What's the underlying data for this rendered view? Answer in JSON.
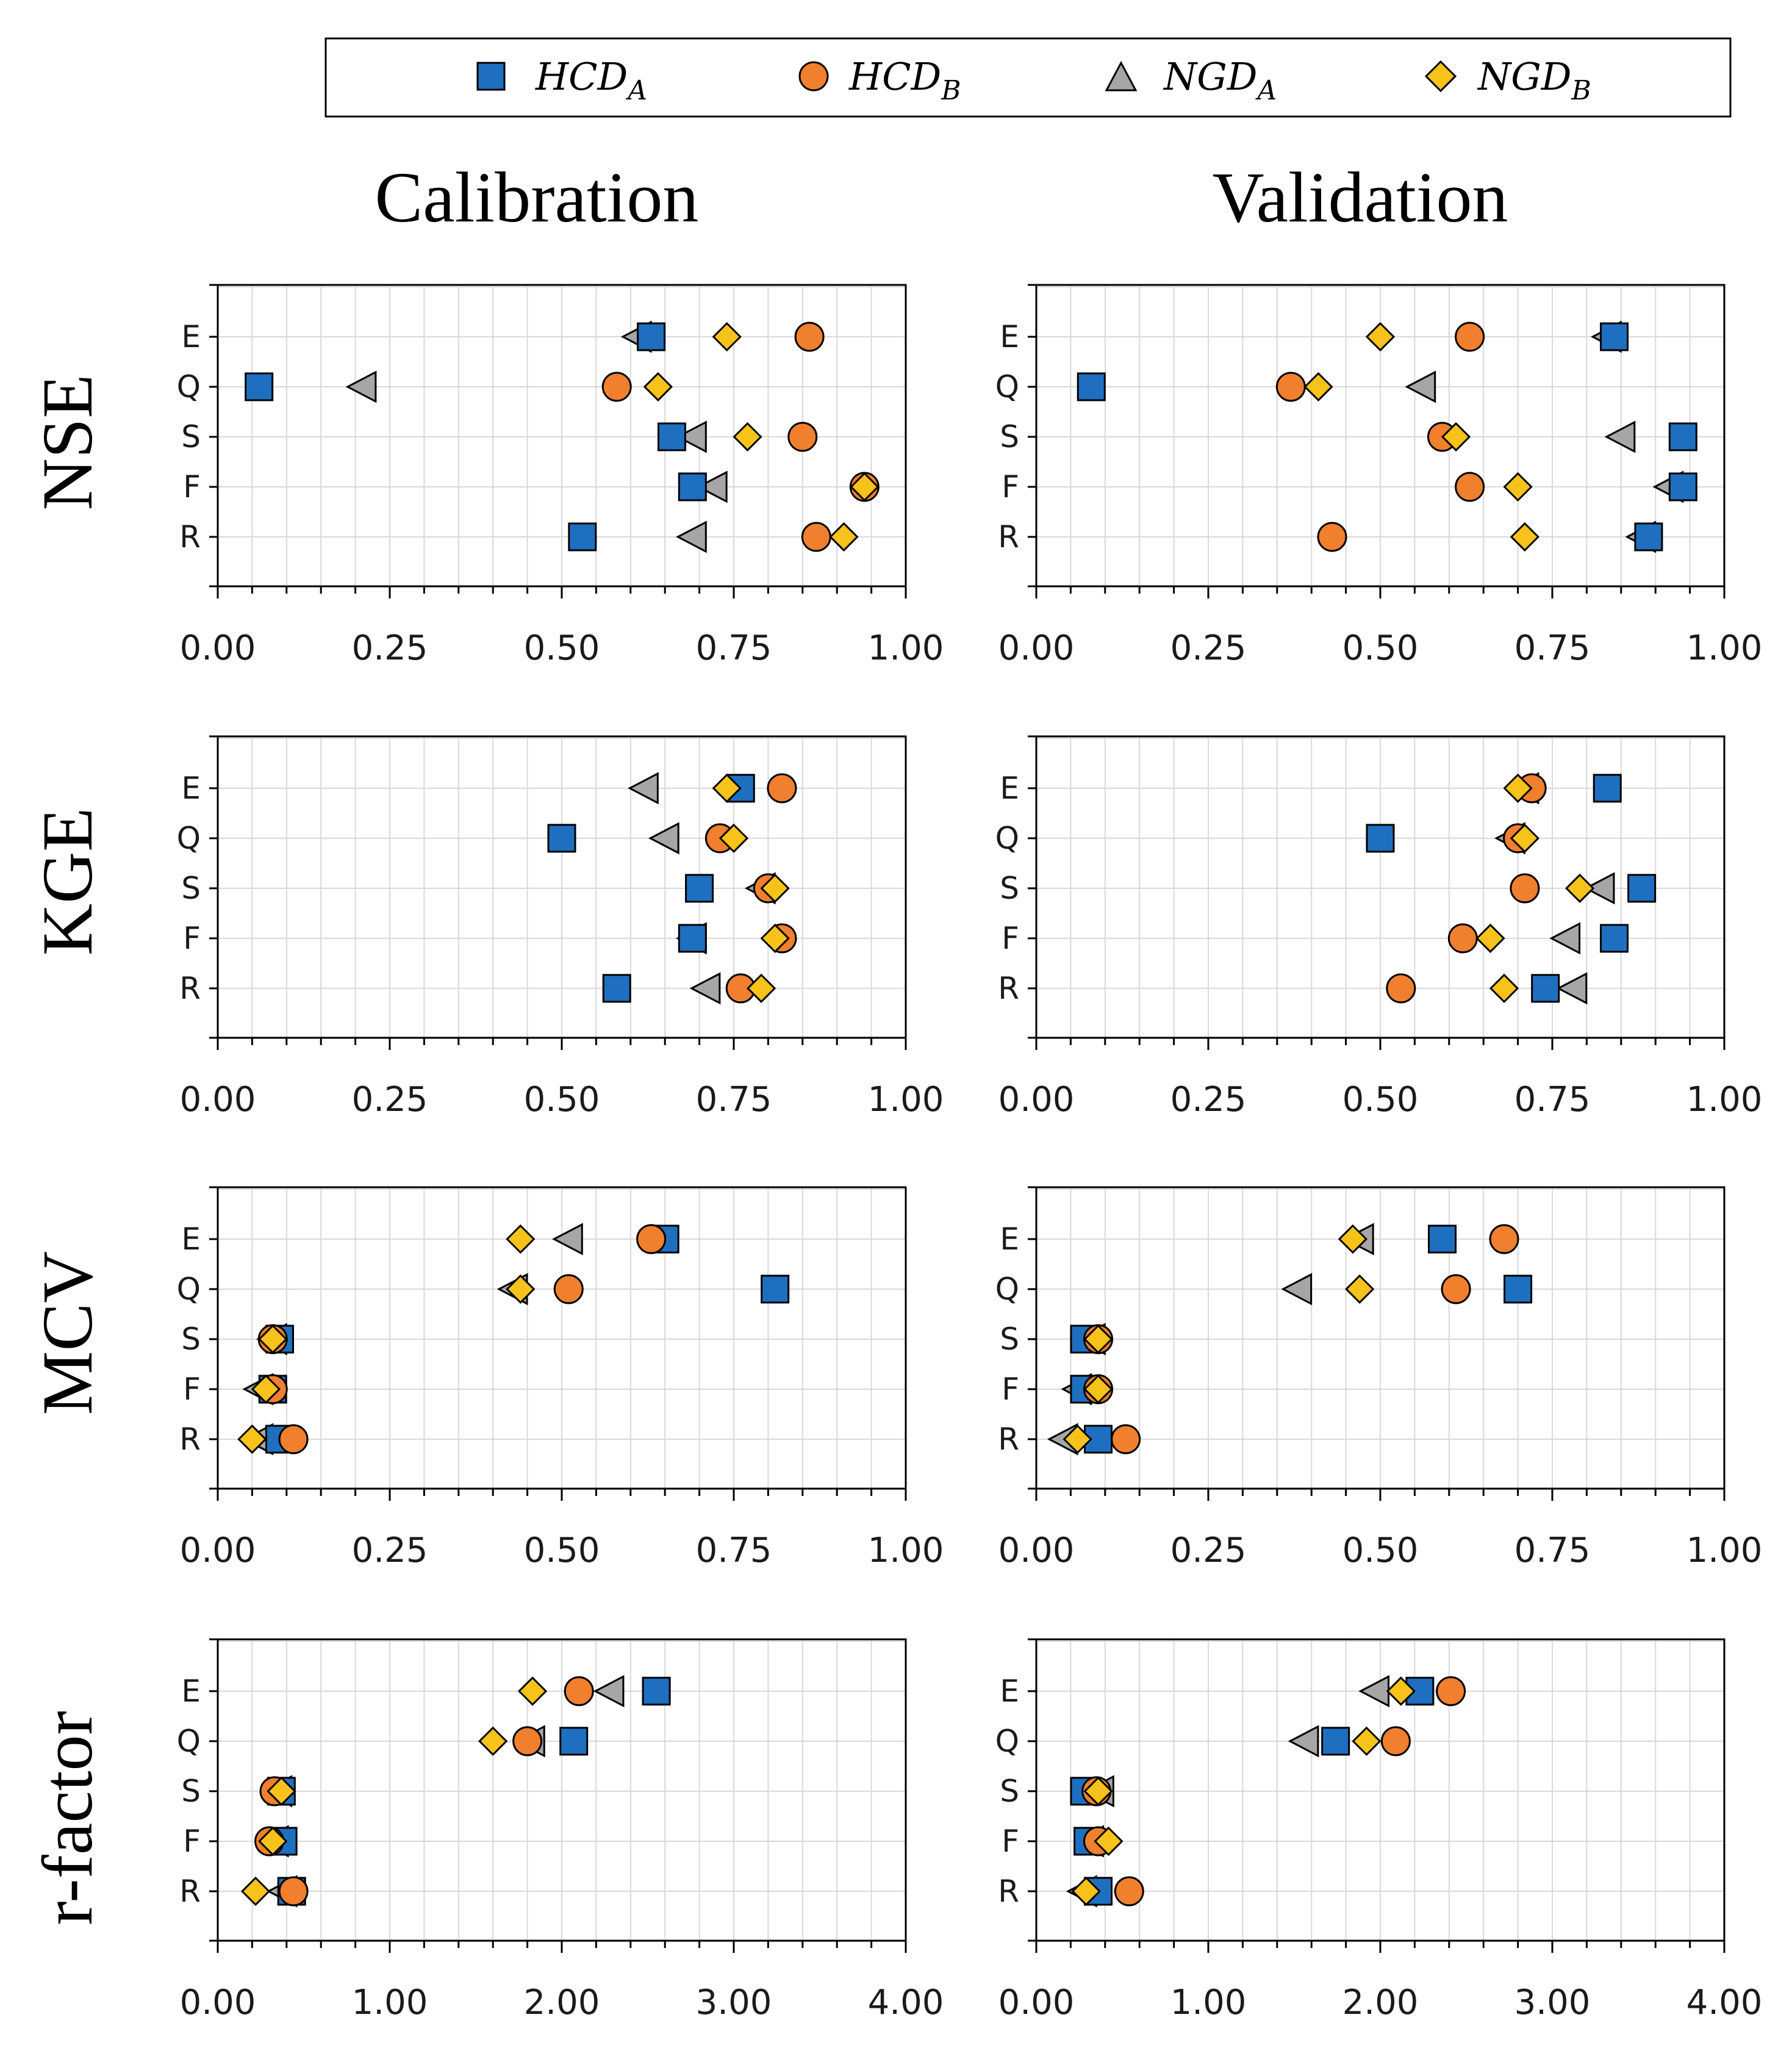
{
  "legend": {
    "entries": [
      {
        "key": "HCDA",
        "base": "HCD",
        "sub": "A",
        "marker": "square"
      },
      {
        "key": "HCDB",
        "base": "HCD",
        "sub": "B",
        "marker": "circle"
      },
      {
        "key": "NGDA",
        "base": "NGD",
        "sub": "A",
        "marker": "triangle"
      },
      {
        "key": "NGDB",
        "base": "NGD",
        "sub": "B",
        "marker": "diamond"
      }
    ]
  },
  "column_titles": [
    "Calibration",
    "Validation"
  ],
  "row_titles": [
    "NSE",
    "KGE",
    "MCV",
    "r-factor"
  ],
  "colors": {
    "HCDA": "#1f6fc0",
    "HCDB": "#f07f2e",
    "NGDA": "#a6a6a6",
    "NGDB": "#f7c21a",
    "grid": "#d9d9d9",
    "axis": "#000000"
  },
  "chart_data": {
    "type": "scatter",
    "categories": [
      "E",
      "Q",
      "S",
      "F",
      "R"
    ],
    "series_names": [
      "HCDA",
      "HCDB",
      "NGDA",
      "NGDB"
    ],
    "panels": [
      {
        "metric": "NSE",
        "phase": "Calibration",
        "xlim": [
          0,
          1
        ],
        "ticks": [
          "0.00",
          "0.25",
          "0.50",
          "0.75",
          "1.00"
        ],
        "tick_values": [
          0,
          0.25,
          0.5,
          0.75,
          1
        ],
        "series": {
          "HCDA": [
            0.63,
            0.06,
            0.66,
            0.69,
            0.53
          ],
          "HCDB": [
            0.86,
            0.58,
            0.85,
            0.94,
            0.87
          ],
          "NGDA": [
            0.61,
            0.21,
            0.69,
            0.72,
            0.69
          ],
          "NGDB": [
            0.74,
            0.64,
            0.77,
            0.94,
            0.91
          ]
        }
      },
      {
        "metric": "NSE",
        "phase": "Validation",
        "xlim": [
          0,
          1
        ],
        "ticks": [
          "0.00",
          "0.25",
          "0.50",
          "0.75",
          "1.00"
        ],
        "tick_values": [
          0,
          0.25,
          0.5,
          0.75,
          1
        ],
        "series": {
          "HCDA": [
            0.84,
            0.08,
            0.94,
            0.94,
            0.89
          ],
          "HCDB": [
            0.63,
            0.37,
            0.59,
            0.63,
            0.43
          ],
          "NGDA": [
            0.83,
            0.56,
            0.85,
            0.92,
            0.88
          ],
          "NGDB": [
            0.5,
            0.41,
            0.61,
            0.7,
            0.71
          ]
        }
      },
      {
        "metric": "KGE",
        "phase": "Calibration",
        "xlim": [
          0,
          1
        ],
        "ticks": [
          "0.00",
          "0.25",
          "0.50",
          "0.75",
          "1.00"
        ],
        "tick_values": [
          0,
          0.25,
          0.5,
          0.75,
          1
        ],
        "series": {
          "HCDA": [
            0.76,
            0.5,
            0.7,
            0.69,
            0.58
          ],
          "HCDB": [
            0.82,
            0.73,
            0.8,
            0.82,
            0.76
          ],
          "NGDA": [
            0.62,
            0.65,
            0.79,
            0.69,
            0.71
          ],
          "NGDB": [
            0.74,
            0.75,
            0.81,
            0.81,
            0.79
          ]
        }
      },
      {
        "metric": "KGE",
        "phase": "Validation",
        "xlim": [
          0,
          1
        ],
        "ticks": [
          "0.00",
          "0.25",
          "0.50",
          "0.75",
          "1.00"
        ],
        "tick_values": [
          0,
          0.25,
          0.5,
          0.75,
          1
        ],
        "series": {
          "HCDA": [
            0.83,
            0.5,
            0.88,
            0.84,
            0.74
          ],
          "HCDB": [
            0.72,
            0.7,
            0.71,
            0.62,
            0.53
          ],
          "NGDA": [
            0.71,
            0.69,
            0.82,
            0.77,
            0.78
          ],
          "NGDB": [
            0.7,
            0.71,
            0.79,
            0.66,
            0.68
          ]
        }
      },
      {
        "metric": "MCV",
        "phase": "Calibration",
        "xlim": [
          0,
          1
        ],
        "ticks": [
          "0.00",
          "0.25",
          "0.50",
          "0.75",
          "1.00"
        ],
        "tick_values": [
          0,
          0.25,
          0.5,
          0.75,
          1
        ],
        "series": {
          "HCDA": [
            0.65,
            0.81,
            0.09,
            0.08,
            0.09
          ],
          "HCDB": [
            0.63,
            0.51,
            0.08,
            0.08,
            0.11
          ],
          "NGDA": [
            0.51,
            0.43,
            0.08,
            0.06,
            0.06
          ],
          "NGDB": [
            0.44,
            0.44,
            0.08,
            0.07,
            0.05
          ]
        }
      },
      {
        "metric": "MCV",
        "phase": "Validation",
        "xlim": [
          0,
          1
        ],
        "ticks": [
          "0.00",
          "0.25",
          "0.50",
          "0.75",
          "1.00"
        ],
        "tick_values": [
          0,
          0.25,
          0.5,
          0.75,
          1
        ],
        "series": {
          "HCDA": [
            0.59,
            0.7,
            0.07,
            0.07,
            0.09
          ],
          "HCDB": [
            0.68,
            0.61,
            0.09,
            0.09,
            0.13
          ],
          "NGDA": [
            0.47,
            0.38,
            0.08,
            0.06,
            0.04
          ],
          "NGDB": [
            0.46,
            0.47,
            0.09,
            0.09,
            0.06
          ]
        }
      },
      {
        "metric": "r-factor",
        "phase": "Calibration",
        "xlim": [
          0,
          4
        ],
        "ticks": [
          "0.00",
          "1.00",
          "2.00",
          "3.00",
          "4.00"
        ],
        "tick_values": [
          0,
          1,
          2,
          3,
          4
        ],
        "series": {
          "HCDA": [
            2.55,
            2.07,
            0.37,
            0.38,
            0.43
          ],
          "HCDB": [
            2.1,
            1.8,
            0.33,
            0.3,
            0.44
          ],
          "NGDA": [
            2.28,
            1.82,
            0.35,
            0.33,
            0.38
          ],
          "NGDB": [
            1.83,
            1.6,
            0.37,
            0.32,
            0.22
          ]
        }
      },
      {
        "metric": "r-factor",
        "phase": "Validation",
        "xlim": [
          0,
          4
        ],
        "ticks": [
          "0.00",
          "1.00",
          "2.00",
          "3.00",
          "4.00"
        ],
        "tick_values": [
          0,
          1,
          2,
          3,
          4
        ],
        "series": {
          "HCDA": [
            2.23,
            1.74,
            0.28,
            0.3,
            0.36
          ],
          "HCDB": [
            2.41,
            2.09,
            0.35,
            0.36,
            0.54
          ],
          "NGDA": [
            1.97,
            1.56,
            0.37,
            0.31,
            0.27
          ],
          "NGDB": [
            2.12,
            1.92,
            0.36,
            0.42,
            0.29
          ]
        }
      }
    ]
  }
}
